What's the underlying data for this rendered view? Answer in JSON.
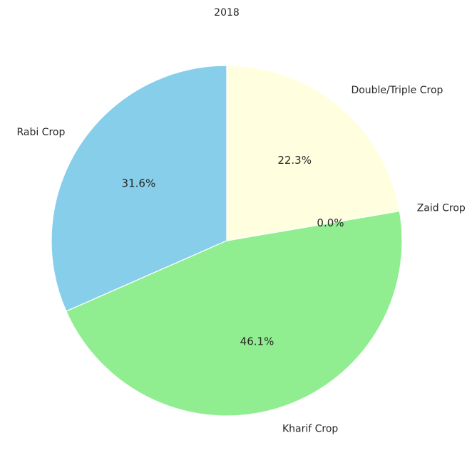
{
  "chart_data": {
    "type": "pie",
    "title": "2018",
    "categories": [
      "Rabi Crop",
      "Kharif Crop",
      "Zaid Crop",
      "Double/Triple Crop"
    ],
    "values": [
      31.6,
      46.1,
      0.0,
      22.3
    ],
    "percent_labels": [
      "31.6%",
      "46.1%",
      "0.0%",
      "22.3%"
    ],
    "colors": [
      "#87ceeb",
      "#90ee90",
      "#f08080",
      "#ffffe0"
    ],
    "start_angle_deg": 90,
    "direction": "counterclockwise",
    "legend": "none"
  }
}
